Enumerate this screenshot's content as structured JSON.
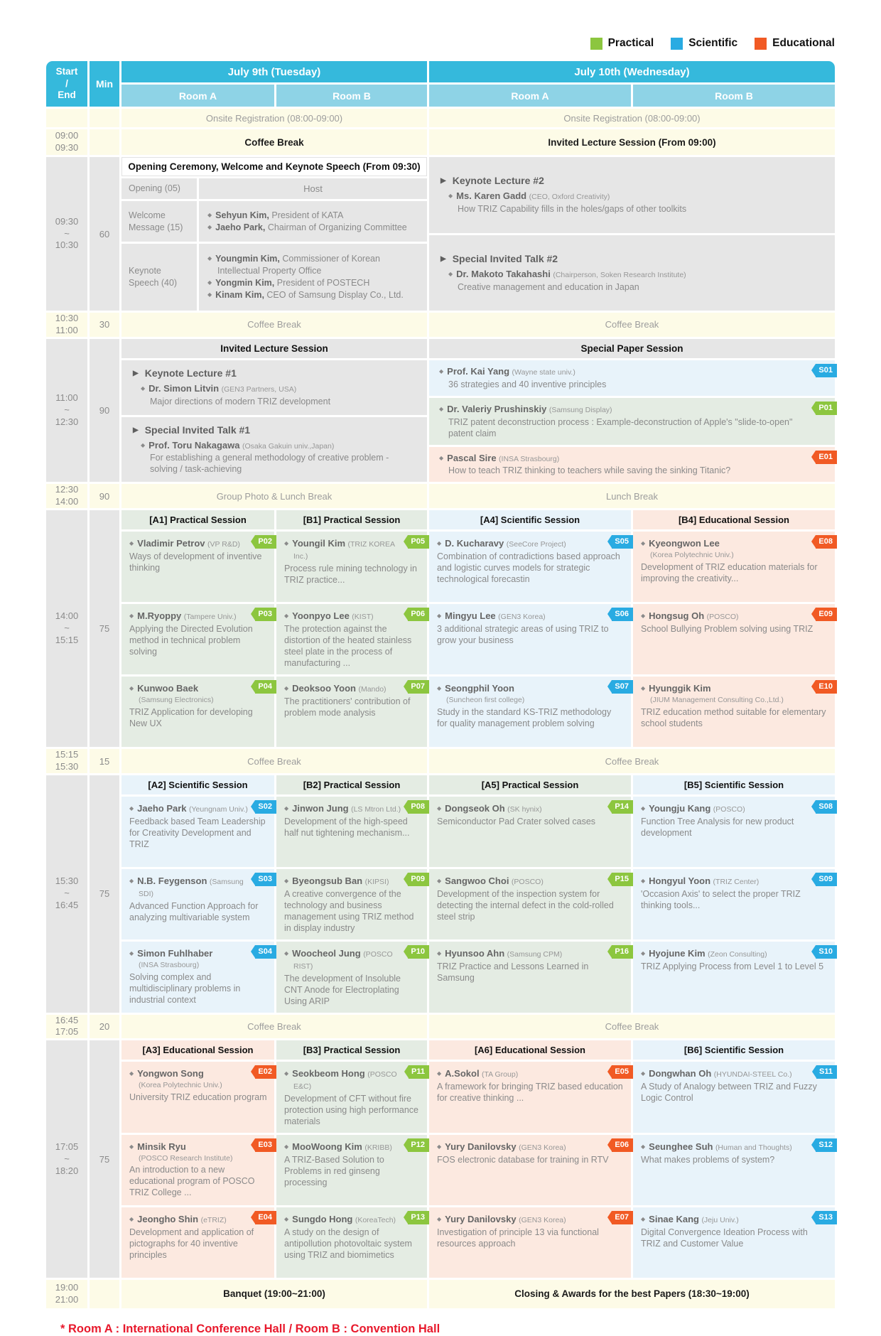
{
  "legend": {
    "practical": "Practical",
    "scientific": "Scientific",
    "educational": "Educational"
  },
  "colors": {
    "practical": "#8cc63f",
    "scientific": "#29abe2",
    "educational": "#f15a24",
    "header_band": "#35b9dc",
    "room_band": "#8ed3e6",
    "break_bg": "#fdfbe7",
    "plenary_bg": "#e6e6e6",
    "footnote_red": "#e8192c"
  },
  "header": {
    "start_end": "Start\n/\nEnd",
    "min": "Min",
    "day1": "July 9th (Tuesday)",
    "day2": "July 10th (Wednesday)",
    "room_a": "Room A",
    "room_b": "Room B"
  },
  "registration": {
    "d1": "Onsite Registration (08:00-09:00)",
    "d2": "Onsite Registration (08:00-09:00)"
  },
  "r0900": {
    "time": "09:00\n09:30",
    "d1": "Coffee Break",
    "d2": "Invited Lecture Session (From 09:00)"
  },
  "r0930": {
    "time": "09:30\n~\n10:30",
    "min": "60",
    "opening": {
      "title": "Opening Ceremony, Welcome and Keynote Speech (From 09:30)",
      "row1_label": "Opening (05)",
      "row1_value": "Host",
      "row2_label": "Welcome\nMessage (15)",
      "row2_items": [
        {
          "name": "Sehyun Kim,",
          "role": "President of KATA"
        },
        {
          "name": "Jaeho Park,",
          "role": "Chairman of Organizing Committee"
        }
      ],
      "row3_label": "Keynote\nSpeech (40)",
      "row3_items": [
        {
          "name": "Youngmin Kim,",
          "role": "Commissioner of Korean Intellectual Property Office"
        },
        {
          "name": "Yongmin Kim,",
          "role": "President of POSTECH"
        },
        {
          "name": "Kinam Kim,",
          "role": "CEO of Samsung Display Co., Ltd."
        }
      ]
    },
    "blocks": [
      {
        "heading": "Keynote Lecture #2",
        "speaker": "Ms. Karen Gadd",
        "affiliation": "(CEO, Oxford Creativity)",
        "title": "How TRIZ Capability fills in the holes/gaps of other toolkits"
      },
      {
        "heading": "Special Invited Talk #2",
        "speaker": "Dr. Makoto Takahashi",
        "affiliation": "(Chairperson, Soken Research Institute)",
        "title": "Creative management and education in Japan"
      }
    ]
  },
  "r1030": {
    "time": "10:30\n11:00",
    "min": "30",
    "d1": "Coffee Break",
    "d2": "Coffee Break"
  },
  "r1100": {
    "time": "11:00\n~\n12:30",
    "min": "90",
    "d1_header": "Invited Lecture Session",
    "blocks": [
      {
        "heading": "Keynote Lecture #1",
        "speaker": "Dr. Simon Litvin",
        "affiliation": "(GEN3 Partners, USA)",
        "title": "Major directions of modern TRIZ development"
      },
      {
        "heading": "Special Invited Talk #1",
        "speaker": "Prof. Toru Nakagawa",
        "affiliation": "(Osaka Gakuin univ.,Japan)",
        "title": "For establishing a general methodology of creative problem -solving / task-achieving"
      }
    ],
    "d2_header": "Special Paper Session",
    "items": [
      {
        "code": "S01",
        "speaker": "Prof. Kai Yang",
        "affiliation": "(Wayne state univ.)",
        "title": "36 strategies and 40 inventive principles"
      },
      {
        "code": "P01",
        "speaker": "Dr. Valeriy Prushinskiy",
        "affiliation": "(Samsung Display)",
        "title": "TRIZ patent deconstruction process : Example-deconstruction of Apple's \"slide-to-open\" patent claim"
      },
      {
        "code": "E01",
        "speaker": "Pascal Sire",
        "affiliation": "(INSA Strasbourg)",
        "title": "How to teach TRIZ thinking to teachers while saving the sinking Titanic?"
      }
    ]
  },
  "r1230": {
    "time": "12:30\n14:00",
    "min": "90",
    "d1": "Group Photo & Lunch Break",
    "d2": "Lunch Break"
  },
  "r1400": {
    "time": "14:00\n~\n15:15",
    "min": "75",
    "cols": [
      {
        "header": "[A1] Practical Session",
        "type": "practical",
        "items": [
          {
            "code": "P02",
            "speaker": "Vladimir Petrov",
            "affiliation": "(VP R&D)",
            "title": "Ways of development of inventive thinking"
          },
          {
            "code": "P03",
            "speaker": "M.Ryoppy",
            "affiliation": "(Tampere Univ.)",
            "title": "Applying the Directed Evolution method in technical problem solving"
          },
          {
            "code": "P04",
            "speaker": "Kunwoo Baek",
            "affiliation": "(Samsung Electronics)",
            "title": "TRIZ Application for developing New UX"
          }
        ]
      },
      {
        "header": "[B1] Practical Session",
        "type": "practical",
        "items": [
          {
            "code": "P05",
            "speaker": "Youngil Kim",
            "affiliation": "(TRIZ KOREA Inc.)",
            "title": "Process rule mining technology in TRIZ practice..."
          },
          {
            "code": "P06",
            "speaker": "Yoonpyo Lee",
            "affiliation": "(KIST)",
            "title": "The protection against the distortion of the heated stainless steel plate in the process of manufacturing ..."
          },
          {
            "code": "P07",
            "speaker": "Deoksoo Yoon",
            "affiliation": "(Mando)",
            "title": "The practitioners' contribution of problem mode analysis"
          }
        ]
      },
      {
        "header": "[A4] Scientific Session",
        "type": "scientific",
        "items": [
          {
            "code": "S05",
            "speaker": "D. Kucharavy",
            "affiliation": "(SeeCore Project)",
            "title": "Combination of contradictions based approach and logistic curves models for strategic technological forecastin"
          },
          {
            "code": "S06",
            "speaker": "Mingyu Lee",
            "affiliation": "(GEN3 Korea)",
            "title": "3 additional  strategic areas of using TRIZ to grow your business"
          },
          {
            "code": "S07",
            "speaker": "Seongphil Yoon",
            "affiliation": "(Suncheon first college)",
            "title": "Study in the standard KS-TRIZ methodology for quality management problem solving"
          }
        ]
      },
      {
        "header": "[B4] Educational Session",
        "type": "educational",
        "items": [
          {
            "code": "E08",
            "speaker": "Kyeongwon Lee",
            "affiliation": "(Korea Polytechnic Univ.)",
            "title": "Development of TRIZ education materials for improving the creativity..."
          },
          {
            "code": "E09",
            "speaker": "Hongsug Oh",
            "affiliation": "(POSCO)",
            "title": "School Bullying Problem solving using TRIZ"
          },
          {
            "code": "E10",
            "speaker": "Hyunggik Kim",
            "affiliation": "(JIUM Management Consulting Co.,Ltd.)",
            "title": "TRIZ education method suitable for elementary school students"
          }
        ]
      }
    ]
  },
  "r1515": {
    "time": "15:15\n15:30",
    "min": "15",
    "d1": "Coffee Break",
    "d2": "Coffee Break"
  },
  "r1530": {
    "time": "15:30\n~\n16:45",
    "min": "75",
    "cols": [
      {
        "header": "[A2] Scientific Session",
        "type": "scientific",
        "items": [
          {
            "code": "S02",
            "speaker": "Jaeho Park",
            "affiliation": "(Yeungnam Univ.)",
            "title": "Feedback based Team Leadership for Creativity Development and TRIZ"
          },
          {
            "code": "S03",
            "speaker": "N.B. Feygenson",
            "affiliation": "(Samsung SDI)",
            "title": "Advanced Function Approach for analyzing multivariable system"
          },
          {
            "code": "S04",
            "speaker": "Simon Fuhlhaber",
            "affiliation": "(INSA Strasbourg)",
            "title": "Solving complex and multidisciplinary problems in industrial context"
          }
        ]
      },
      {
        "header": "[B2] Practical Session",
        "type": "practical",
        "items": [
          {
            "code": "P08",
            "speaker": "Jinwon Jung",
            "affiliation": "(LS Mtron Ltd.)",
            "title": "Development of the high-speed half nut tightening mechanism..."
          },
          {
            "code": "P09",
            "speaker": "Byeongsub Ban",
            "affiliation": "(KIPSI)",
            "title": "A creative convergence of the technology and business management using TRIZ method in display industry"
          },
          {
            "code": "P10",
            "speaker": "Woocheol Jung",
            "affiliation": "(POSCO RIST)",
            "title": "The development of Insoluble CNT Anode for Electroplating Using ARIP"
          }
        ]
      },
      {
        "header": "[A5] Practical Session",
        "type": "practical",
        "items": [
          {
            "code": "P14",
            "speaker": "Dongseok Oh",
            "affiliation": "(SK hynix)",
            "title": "Semiconductor Pad Crater solved cases"
          },
          {
            "code": "P15",
            "speaker": "Sangwoo Choi",
            "affiliation": "(POSCO)",
            "title": "Development of the inspection system for detecting the internal defect in the cold-rolled steel strip"
          },
          {
            "code": "P16",
            "speaker": "Hyunsoo Ahn",
            "affiliation": "(Samsung CPM)",
            "title": "TRIZ Practice and Lessons Learned in Samsung"
          }
        ]
      },
      {
        "header": "[B5] Scientific Session",
        "type": "scientific",
        "items": [
          {
            "code": "S08",
            "speaker": "Youngju Kang",
            "affiliation": "(POSCO)",
            "title": "Function Tree Analysis for new product development"
          },
          {
            "code": "S09",
            "speaker": "Hongyul Yoon",
            "affiliation": "(TRIZ Center)",
            "title": "'Occasion Axis' to select the proper TRIZ thinking tools..."
          },
          {
            "code": "S10",
            "speaker": "Hyojune Kim",
            "affiliation": "(Zeon Consulting)",
            "title": "TRIZ Applying Process from Level 1 to Level 5"
          }
        ]
      }
    ]
  },
  "r1645": {
    "time": "16:45\n17:05",
    "min": "20",
    "d1": "Coffee Break",
    "d2": "Coffee Break"
  },
  "r1705": {
    "time": "17:05\n~\n18:20",
    "min": "75",
    "cols": [
      {
        "header": "[A3] Educational Session",
        "type": "educational",
        "items": [
          {
            "code": "E02",
            "speaker": "Yongwon Song",
            "affiliation": "(Korea Polytechnic Univ.)",
            "title": "University TRIZ education program"
          },
          {
            "code": "E03",
            "speaker": "Minsik Ryu",
            "affiliation": "(POSCO Research Institute)",
            "title": "An introduction to a new educational program of POSCO TRIZ College ..."
          },
          {
            "code": "E04",
            "speaker": "Jeongho Shin",
            "affiliation": "(eTRIZ)",
            "title": "Development and application of pictographs for 40 inventive principles"
          }
        ]
      },
      {
        "header": "[B3] Practical Session",
        "type": "practical",
        "items": [
          {
            "code": "P11",
            "speaker": "Seokbeom Hong",
            "affiliation": "(POSCO E&C)",
            "title": "Development of CFT without fire protection using high performance materials"
          },
          {
            "code": "P12",
            "speaker": "MooWoong Kim",
            "affiliation": "(KRIBB)",
            "title": "A TRIZ-Based Solution to Problems in red ginseng processing"
          },
          {
            "code": "P13",
            "speaker": "Sungdo Hong",
            "affiliation": "(KoreaTech)",
            "title": "A study on the design of antipollution photovoltaic system using TRIZ and biomimetics"
          }
        ]
      },
      {
        "header": "[A6] Educational Session",
        "type": "educational",
        "items": [
          {
            "code": "E05",
            "speaker": "A.Sokol",
            "affiliation": "(TA Group)",
            "title": "A framework for bringing TRIZ based education for creative thinking ..."
          },
          {
            "code": "E06",
            "speaker": "Yury Danilovsky",
            "affiliation": "(GEN3 Korea)",
            "title": "FOS electronic database for training in RTV"
          },
          {
            "code": "E07",
            "speaker": "Yury Danilovsky",
            "affiliation": "(GEN3 Korea)",
            "title": "Investigation of principle 13 via functional resources approach"
          }
        ]
      },
      {
        "header": "[B6] Scientific Session",
        "type": "scientific",
        "items": [
          {
            "code": "S11",
            "speaker": "Dongwhan Oh",
            "affiliation": "(HYUNDAI-STEEL Co.)",
            "title": "A Study of Analogy between TRIZ and Fuzzy Logic Control"
          },
          {
            "code": "S12",
            "speaker": "Seunghee Suh",
            "affiliation": "(Human and Thoughts)",
            "title": "What makes problems of system?"
          },
          {
            "code": "S13",
            "speaker": "Sinae Kang",
            "affiliation": "(Jeju Univ.)",
            "title": "Digital Convergence Ideation Process with TRIZ and Customer Value"
          }
        ]
      }
    ]
  },
  "r1900": {
    "time": "19:00\n21:00",
    "d1": "Banquet (19:00~21:00)",
    "d2": "Closing & Awards for the best Papers (18:30~19:00)"
  },
  "footnote": {
    "text": "* Room A : International Conference Hall / Room B : Convention Hall"
  }
}
